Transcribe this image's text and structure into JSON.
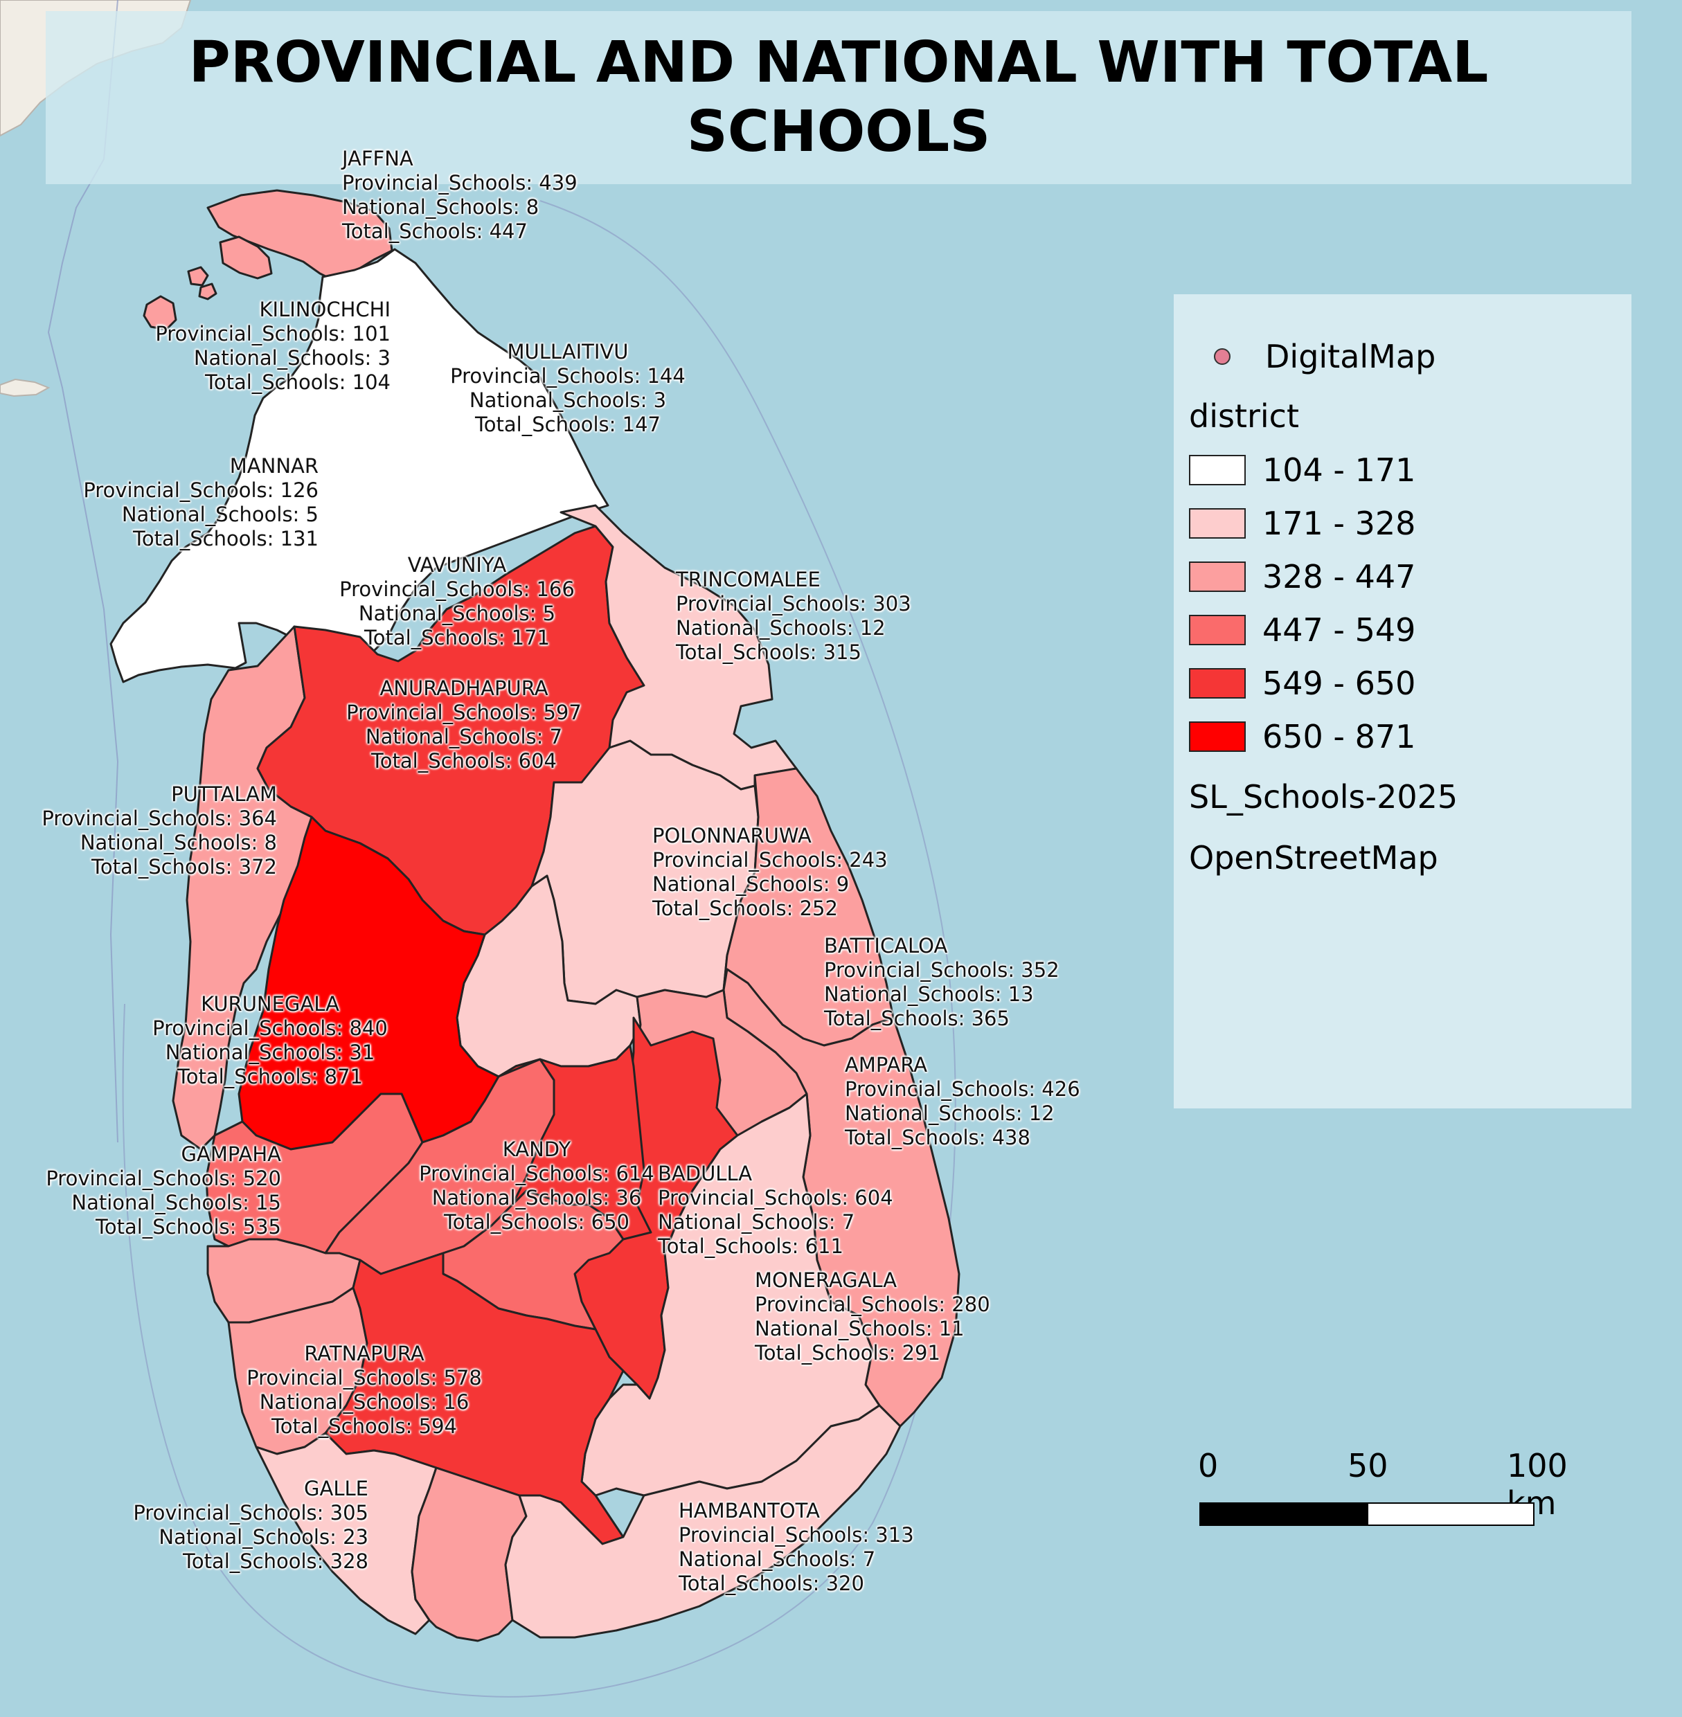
{
  "title": "PROVINCIAL AND NATIONAL WITH TOTAL SCHOOLS",
  "colors": {
    "sea": "#aad3df",
    "class_1": "#ffffff",
    "class_2": "#fdcdcd",
    "class_3": "#fc9f9f",
    "class_4": "#fa6b6b",
    "class_5": "#f53636",
    "class_6": "#ff0000",
    "boundary": "#232323"
  },
  "legend": {
    "point_layer": "DigitalMap",
    "group_title": "district",
    "classes": [
      {
        "label": "104 - 171",
        "color": "#ffffff"
      },
      {
        "label": "171 - 328",
        "color": "#fdcdcd"
      },
      {
        "label": "328 - 447",
        "color": "#fc9f9f"
      },
      {
        "label": "447 - 549",
        "color": "#fa6b6b"
      },
      {
        "label": "549 - 650",
        "color": "#f53636"
      },
      {
        "label": "650 - 871",
        "color": "#ff0000"
      }
    ],
    "layer_1": "SL_Schools-2025",
    "layer_2": "OpenStreetMap"
  },
  "scale": {
    "l0": "0",
    "l1": "50",
    "l2": "100 km"
  },
  "districts": {
    "jaffna": {
      "name": "JAFFNA",
      "l1": "Provincial_Schools: 439",
      "l2": "National_Schools: 8",
      "l3": "Total_Schools: 447"
    },
    "kilinochchi": {
      "name": "KILINOCHCHI",
      "l1": "Provincial_Schools: 101",
      "l2": "National_Schools: 3",
      "l3": "Total_Schools: 104"
    },
    "mullaitivu": {
      "name": "MULLAITIVU",
      "l1": "Provincial_Schools: 144",
      "l2": "National_Schools: 3",
      "l3": "Total_Schools: 147"
    },
    "mannar": {
      "name": "MANNAR",
      "l1": "Provincial_Schools: 126",
      "l2": "National_Schools: 5",
      "l3": "Total_Schools: 131"
    },
    "vavuniya": {
      "name": "VAVUNIYA",
      "l1": "Provincial_Schools: 166",
      "l2": "National_Schools: 5",
      "l3": "Total_Schools: 171"
    },
    "trincomalee": {
      "name": "TRINCOMALEE",
      "l1": "Provincial_Schools: 303",
      "l2": "National_Schools: 12",
      "l3": "Total_Schools: 315"
    },
    "anuradhapura": {
      "name": "ANURADHAPURA",
      "l1": "Provincial_Schools: 597",
      "l2": "National_Schools: 7",
      "l3": "Total_Schools: 604"
    },
    "puttalam": {
      "name": "PUTTALAM",
      "l1": "Provincial_Schools: 364",
      "l2": "National_Schools: 8",
      "l3": "Total_Schools: 372"
    },
    "polonnaruwa": {
      "name": "POLONNARUWA",
      "l1": "Provincial_Schools: 243",
      "l2": "National_Schools: 9",
      "l3": "Total_Schools: 252"
    },
    "batticaloa": {
      "name": "BATTICALOA",
      "l1": "Provincial_Schools: 352",
      "l2": "National_Schools: 13",
      "l3": "Total_Schools: 365"
    },
    "kurunegala": {
      "name": "KURUNEGALA",
      "l1": "Provincial_Schools: 840",
      "l2": "National_Schools: 31",
      "l3": "Total_Schools: 871"
    },
    "ampara": {
      "name": "AMPARA",
      "l1": "Provincial_Schools: 426",
      "l2": "National_Schools: 12",
      "l3": "Total_Schools: 438"
    },
    "gampaha": {
      "name": "GAMPAHA",
      "l1": "Provincial_Schools: 520",
      "l2": "National_Schools: 15",
      "l3": "Total_Schools: 535"
    },
    "kandy": {
      "name": "KANDY",
      "l1": "Provincial_Schools: 614",
      "l2": "National_Schools: 36",
      "l3": "Total_Schools: 650"
    },
    "badulla": {
      "name": "BADULLA",
      "l1": "Provincial_Schools: 604",
      "l2": "National_Schools: 7",
      "l3": "Total_Schools: 611"
    },
    "moneragala": {
      "name": "MONERAGALA",
      "l1": "Provincial_Schools: 280",
      "l2": "National_Schools: 11",
      "l3": "Total_Schools: 291"
    },
    "ratnapura": {
      "name": "RATNAPURA",
      "l1": "Provincial_Schools: 578",
      "l2": "National_Schools: 16",
      "l3": "Total_Schools: 594"
    },
    "galle": {
      "name": "GALLE",
      "l1": "Provincial_Schools: 305",
      "l2": "National_Schools: 23",
      "l3": "Total_Schools: 328"
    },
    "hambantota": {
      "name": "HAMBANTOTA",
      "l1": "Provincial_Schools: 313",
      "l2": "National_Schools: 7",
      "l3": "Total_Schools: 320"
    }
  }
}
